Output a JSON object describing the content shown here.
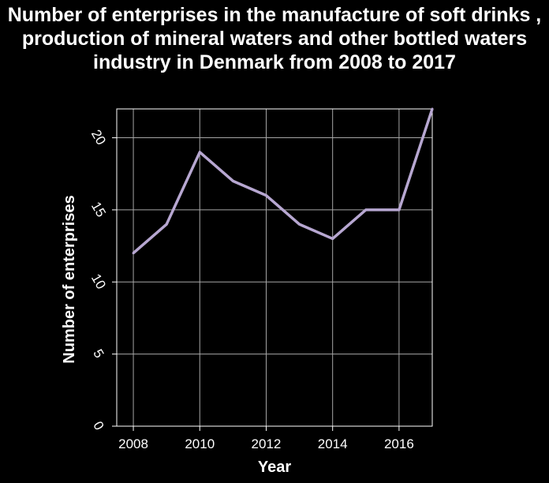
{
  "chart_data": {
    "type": "line",
    "title": "Number of enterprises in the manufacture of soft drinks , production of mineral waters and other bottled waters industry in Denmark from 2008 to 2017",
    "xlabel": "Year",
    "ylabel": "Number of enterprises",
    "x": [
      2008,
      2009,
      2010,
      2011,
      2012,
      2013,
      2014,
      2015,
      2016,
      2017
    ],
    "series": [
      {
        "values": [
          12,
          14,
          19,
          17,
          16,
          14,
          13,
          15,
          15,
          22
        ]
      }
    ],
    "xlim": [
      2007.5,
      2017
    ],
    "ylim": [
      0,
      22
    ],
    "x_ticks": [
      2008,
      2010,
      2012,
      2014,
      2016
    ],
    "y_ticks": [
      0,
      5,
      10,
      15,
      20
    ],
    "grid": true,
    "colors": {
      "background": "#000000",
      "plot_bg": "#000000",
      "grid": "#a6a6a6",
      "line": "#b7a7d1",
      "text": "#ffffff"
    }
  }
}
